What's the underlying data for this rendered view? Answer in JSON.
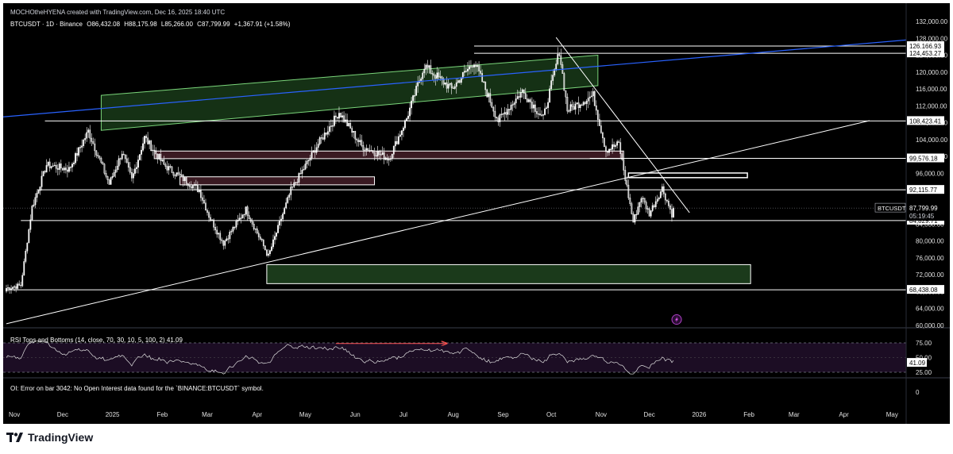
{
  "header": {
    "attribution": "MOCHOtheHYENA created with TradingView.com, Dec 16, 2025 18:40 UTC",
    "symbol_line": "BTCUSDT · 1D · Binance",
    "ohlc": {
      "open": "O86,432.08",
      "high": "H88,175.98",
      "low": "L85,266.00",
      "close": "C87,799.99",
      "change": "+1,367.91 (+1.58%)"
    }
  },
  "price_axis": {
    "ticks": [
      "132,000.00",
      "128,000.00",
      "124,000.00",
      "120,000.00",
      "116,000.00",
      "112,000.00",
      "108,000.00",
      "104,000.00",
      "100,000.00",
      "96,000.00",
      "92,000.00",
      "88,000.00",
      "84,000.00",
      "80,000.00",
      "76,000.00",
      "72,000.00",
      "68,000.00",
      "64,000.00",
      "60,000.00"
    ],
    "level_labels": [
      {
        "text": "126,166.93",
        "price": 126166.93
      },
      {
        "text": "124,453.27",
        "price": 124453.27
      },
      {
        "text": "108,423.41",
        "price": 108423.41
      },
      {
        "text": "99,576.18",
        "price": 99576.18
      },
      {
        "text": "92,115.77",
        "price": 92115.77
      },
      {
        "text": "84,829.71",
        "price": 84829.71
      },
      {
        "text": "68,438.08",
        "price": 68438.08
      }
    ],
    "last_price": {
      "symbol": "BTCUSDT",
      "price_text": "87,799.99",
      "countdown": "05:19:45",
      "price": 87799.99
    }
  },
  "time_axis": {
    "labels": [
      "Nov",
      "Dec",
      "2025",
      "Feb",
      "Mar",
      "Apr",
      "May",
      "Jun",
      "Jul",
      "Aug",
      "Sep",
      "Oct",
      "Nov",
      "Dec",
      "2026",
      "Feb",
      "Mar",
      "Apr",
      "May"
    ]
  },
  "rsi": {
    "title": "RSI Tops and Bottoms (14, close, 70, 30, 10, 5, 100, 2)",
    "value": "41.09",
    "ticks": [
      "75.00",
      "50.00",
      "25.00"
    ]
  },
  "oi": {
    "message": "OI: Error on bar 3042: No Open Interest data found for the `BINANCE:BTCUSDT` symbol.",
    "zero_tick": "0"
  },
  "footer": {
    "brand": "TradingView"
  },
  "colors": {
    "background": "#000000",
    "candle": "#ffffff",
    "green_zone": "#1b3a1b",
    "red_zone": "#3a1a22",
    "blue_line": "#2962ff",
    "rsi_band": "#1c0d24",
    "arrow": "#ff5252"
  },
  "chart_data": {
    "type": "candlestick",
    "title": "",
    "xlabel": "",
    "ylabel": "",
    "symbol": "BTCUSDT",
    "interval": "1D",
    "exchange": "Binance",
    "ylim": [
      59000,
      132000
    ],
    "horizontal_levels": [
      126166.93,
      124453.27,
      108423.41,
      99576.18,
      92115.77,
      84829.71,
      68438.08
    ],
    "approx_close_path": [
      {
        "x": "2024-10-28",
        "y": 70000
      },
      {
        "x": "2024-11-12",
        "y": 88000
      },
      {
        "x": "2024-12-17",
        "y": 105000
      },
      {
        "x": "2025-01-05",
        "y": 94000
      },
      {
        "x": "2025-01-21",
        "y": 104000
      },
      {
        "x": "2025-02-25",
        "y": 84000
      },
      {
        "x": "2025-04-08",
        "y": 76000
      },
      {
        "x": "2025-05-22",
        "y": 110000
      },
      {
        "x": "2025-07-14",
        "y": 121000
      },
      {
        "x": "2025-08-14",
        "y": 123000
      },
      {
        "x": "2025-10-06",
        "y": 125000
      },
      {
        "x": "2025-10-11",
        "y": 110000
      },
      {
        "x": "2025-11-21",
        "y": 84000
      },
      {
        "x": "2025-12-16",
        "y": 87800
      }
    ]
  }
}
